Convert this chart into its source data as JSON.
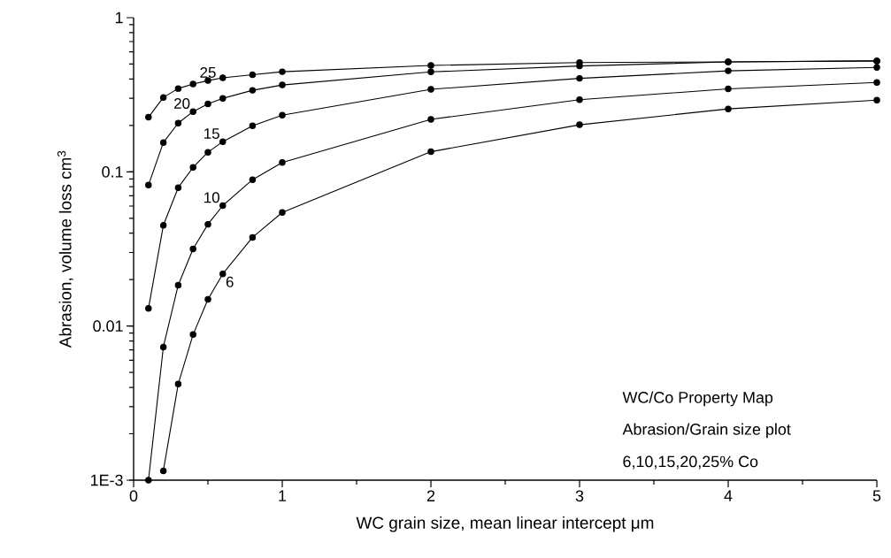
{
  "chart_data": {
    "type": "line",
    "xlabel": "WC grain size, mean linear intercept    μm",
    "ylabel": "Abrasion, volume loss    cm$^{3}$",
    "log": "y",
    "marker": "circle",
    "line_style": "solid",
    "xlim": [
      0,
      5
    ],
    "xticks": [
      0,
      1,
      2,
      3,
      4,
      5
    ],
    "ylim": [
      0.001,
      1
    ],
    "yticks": [
      {
        "value": 0.001,
        "label": "1E-3"
      },
      0.01,
      0.1,
      1
    ],
    "x": [
      0.1,
      0.2,
      0.3,
      0.4,
      0.5,
      0.6,
      0.8,
      1,
      2,
      3,
      4,
      5
    ],
    "series": [
      {
        "name": "25",
        "color": "#000000",
        "values": [
          0.226,
          0.304,
          0.347,
          0.371,
          0.391,
          0.407,
          0.427,
          0.446,
          0.49,
          0.511,
          0.517,
          0.524
        ]
      },
      {
        "name": "20",
        "color": "#000000",
        "values": [
          0.082,
          0.155,
          0.207,
          0.246,
          0.276,
          0.3,
          0.338,
          0.366,
          0.445,
          0.486,
          0.517,
          0.524
        ]
      },
      {
        "name": "15",
        "color": "#000000",
        "values": [
          0.013,
          0.045,
          0.079,
          0.107,
          0.134,
          0.157,
          0.199,
          0.233,
          0.343,
          0.404,
          0.452,
          0.476
        ]
      },
      {
        "name": "10",
        "color": "#000000",
        "values": [
          0.001,
          0.0073,
          0.0184,
          0.0316,
          0.0457,
          0.0604,
          0.089,
          0.115,
          0.219,
          0.294,
          0.345,
          0.38
        ]
      },
      {
        "name": "6",
        "color": "#000000",
        "values": [
          null,
          0.00115,
          0.0042,
          0.0088,
          0.0149,
          0.0218,
          0.0376,
          0.0545,
          0.135,
          0.202,
          0.256,
          0.292
        ]
      }
    ],
    "annotations": [
      "WC/Co Property Map",
      "Abrasion/Grain size plot",
      "6,10,15,20,25% Co"
    ]
  }
}
